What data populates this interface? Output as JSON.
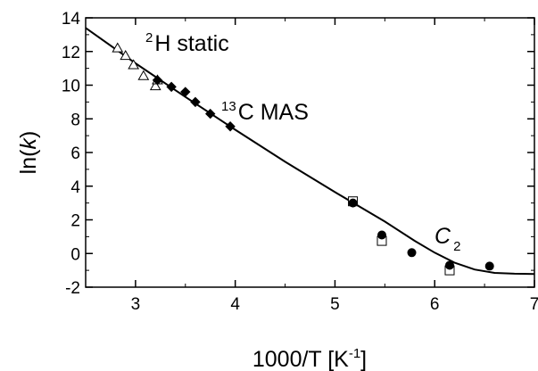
{
  "chart_data": {
    "type": "scatter",
    "xlabel": "1000/T [K-1]",
    "xlabel_main": "1000/T [K",
    "xlabel_sup": "-1",
    "xlabel_end": "]",
    "ylabel": "ln(k)",
    "ylabel_prefix": "ln(",
    "ylabel_var": "k",
    "ylabel_suffix": ")",
    "xlim": [
      2.5,
      7
    ],
    "ylim": [
      -2,
      14
    ],
    "xticks": [
      3,
      4,
      5,
      6,
      7
    ],
    "yticks": [
      -2,
      0,
      2,
      4,
      6,
      8,
      10,
      12,
      14
    ],
    "annotations": {
      "h_static": {
        "sup": "2",
        "text": "H static"
      },
      "c_mas": {
        "sup": "13",
        "text": "C MAS"
      },
      "c2": {
        "main": "C",
        "sub": "2"
      }
    },
    "series": [
      {
        "marker": "open-triangle",
        "points": [
          [
            2.82,
            12.2
          ],
          [
            2.9,
            11.75
          ],
          [
            2.98,
            11.2
          ],
          [
            3.08,
            10.55
          ],
          [
            3.2,
            9.95
          ],
          [
            3.22,
            10.3
          ]
        ]
      },
      {
        "marker": "filled-diamond",
        "points": [
          [
            3.22,
            10.3
          ],
          [
            3.36,
            9.9
          ],
          [
            3.5,
            9.6
          ],
          [
            3.6,
            9.0
          ],
          [
            3.75,
            8.3
          ],
          [
            3.95,
            7.55
          ]
        ]
      },
      {
        "marker": "open-square",
        "points": [
          [
            5.18,
            3.1
          ],
          [
            5.47,
            0.75
          ],
          [
            6.15,
            -1.0
          ]
        ]
      },
      {
        "marker": "filled-circle",
        "points": [
          [
            5.18,
            3.0
          ],
          [
            5.47,
            1.1
          ],
          [
            5.77,
            0.05
          ],
          [
            6.15,
            -0.7
          ],
          [
            6.55,
            -0.75
          ]
        ]
      },
      {
        "style": "line",
        "points": [
          [
            2.5,
            13.4
          ],
          [
            3.0,
            11.3
          ],
          [
            3.5,
            9.3
          ],
          [
            4.0,
            7.35
          ],
          [
            4.5,
            5.45
          ],
          [
            5.0,
            3.65
          ],
          [
            5.5,
            1.9
          ],
          [
            5.8,
            0.75
          ],
          [
            6.0,
            0.05
          ],
          [
            6.2,
            -0.55
          ],
          [
            6.4,
            -0.95
          ],
          [
            6.6,
            -1.15
          ],
          [
            6.8,
            -1.2
          ],
          [
            7.0,
            -1.22
          ]
        ]
      }
    ]
  }
}
